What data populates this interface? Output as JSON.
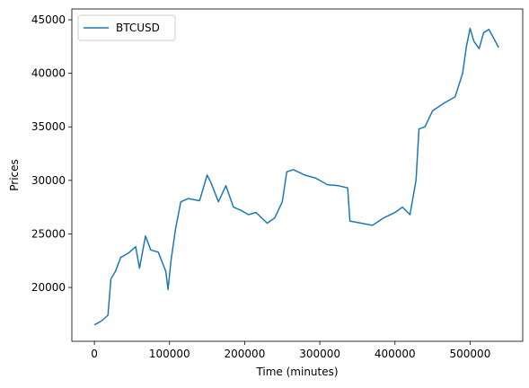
{
  "chart_data": {
    "type": "line",
    "xlabel": "Time (minutes)",
    "ylabel": "Prices",
    "x": [
      0,
      10000,
      18000,
      22000,
      28000,
      35000,
      45000,
      55000,
      60000,
      68000,
      75000,
      85000,
      95000,
      98000,
      102000,
      108000,
      115000,
      125000,
      140000,
      150000,
      155000,
      165000,
      175000,
      185000,
      195000,
      205000,
      215000,
      230000,
      240000,
      250000,
      256000,
      265000,
      280000,
      295000,
      310000,
      325000,
      337000,
      340000,
      355000,
      370000,
      385000,
      400000,
      410000,
      420000,
      428000,
      432000,
      440000,
      450000,
      465000,
      480000,
      490000,
      495000,
      500000,
      505000,
      512000,
      518000,
      525000,
      532000,
      538000
    ],
    "series": [
      {
        "name": "BTCUSD",
        "color": "#1f77b4",
        "values": [
          16500,
          16900,
          17400,
          20800,
          21500,
          22800,
          23200,
          23800,
          21800,
          24800,
          23500,
          23300,
          21500,
          19800,
          22500,
          25500,
          28000,
          28300,
          28100,
          30500,
          29800,
          28000,
          29500,
          27500,
          27200,
          26800,
          27000,
          26000,
          26500,
          28000,
          30800,
          31000,
          30500,
          30200,
          29600,
          29500,
          29300,
          26200,
          26000,
          25800,
          26500,
          27000,
          27500,
          26800,
          30000,
          34800,
          35000,
          36500,
          37200,
          37800,
          40000,
          42500,
          44200,
          43000,
          42300,
          43800,
          44100,
          43200,
          42400
        ]
      }
    ],
    "xlim": [
      -30000,
      570000
    ],
    "xticks": [
      0,
      100000,
      200000,
      300000,
      400000,
      500000
    ],
    "ylim": [
      14970,
      46010
    ],
    "yticks": [
      20000,
      25000,
      30000,
      35000,
      40000,
      45000
    ],
    "legend": "upper left"
  }
}
